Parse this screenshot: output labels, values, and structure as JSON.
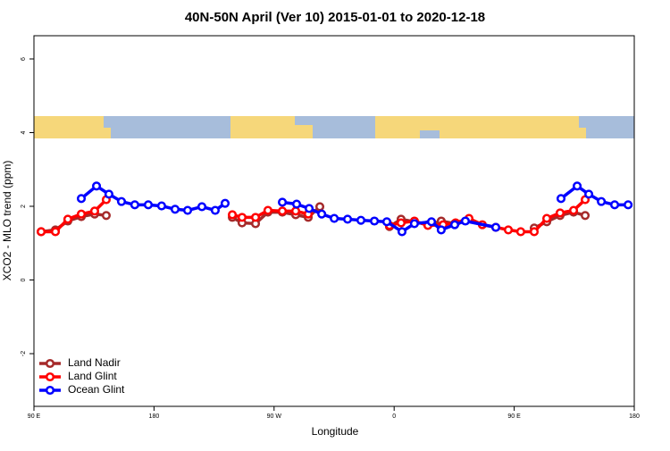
{
  "chart_data": {
    "type": "line",
    "title": "40N-50N April (Ver 10)   2015-01-01 to 2020-12-18",
    "x_label": "Longitude",
    "y_label": "XCO2 - MLO trend (ppm)",
    "xlim": [
      90,
      540
    ],
    "ylim": [
      -3.43,
      6.63
    ],
    "xticks": [
      {
        "value": 90,
        "label": "90 E"
      },
      {
        "value": 180,
        "label": "180"
      },
      {
        "value": 270,
        "label": "90 W"
      },
      {
        "value": 360,
        "label": "0"
      },
      {
        "value": 450,
        "label": "90 E"
      },
      {
        "value": 540,
        "label": "180"
      }
    ],
    "yticks": [
      -2,
      0,
      2,
      4,
      6
    ],
    "legend": "bottom-left",
    "series": [
      {
        "name": "Land Nadir",
        "color": "#a52a2a",
        "x": [
          95.4,
          106.1,
          115.4,
          125.5,
          135.5,
          144.2,
          null,
          238.7,
          246.0,
          256.1,
          265.4,
          276.2,
          286.2,
          295.6,
          304.3,
          null,
          356.5,
          365.2,
          375.2,
          385.3,
          395.3,
          405.4,
          null,
          465.0,
          474.4,
          484.4,
          494.5,
          503.2
        ],
        "values": [
          1.31,
          1.36,
          1.6,
          1.72,
          1.79,
          1.75,
          null,
          1.7,
          1.55,
          1.53,
          1.84,
          1.84,
          1.77,
          1.7,
          1.99,
          null,
          1.45,
          1.65,
          1.58,
          1.5,
          1.6,
          1.53,
          null,
          1.41,
          1.58,
          1.75,
          1.84,
          1.75
        ]
      },
      {
        "name": "Land Glint",
        "color": "#ff0000",
        "x": [
          95.4,
          106.1,
          115.4,
          125.5,
          135.5,
          144.2,
          null,
          238.7,
          246.0,
          256.1,
          265.4,
          276.2,
          286.2,
          295.6,
          null,
          356.5,
          365.2,
          375.2,
          385.3,
          396.7,
          406.1,
          416.1,
          426.1,
          436.2,
          445.6,
          454.9,
          465.0,
          474.4,
          484.4,
          494.5,
          503.2
        ],
        "values": [
          1.31,
          1.31,
          1.65,
          1.79,
          1.87,
          2.18,
          null,
          1.77,
          1.7,
          1.7,
          1.89,
          1.87,
          1.87,
          1.79,
          null,
          1.48,
          1.55,
          1.6,
          1.48,
          1.5,
          1.55,
          1.67,
          1.5,
          1.43,
          1.36,
          1.31,
          1.31,
          1.67,
          1.82,
          1.89,
          2.18
        ]
      },
      {
        "name": "Ocean Glint",
        "color": "#0000ff",
        "x": [
          125.5,
          136.9,
          146.2,
          155.6,
          165.6,
          175.7,
          185.7,
          195.8,
          205.2,
          215.9,
          225.9,
          233.3,
          null,
          276.2,
          286.9,
          296.3,
          305.7,
          315.1,
          325.1,
          335.1,
          345.2,
          354.5,
          365.9,
          375.2,
          388.0,
          395.3,
          405.4,
          413.4,
          436.2,
          null,
          485.1,
          497.2,
          505.9,
          515.3,
          525.3,
          535.4
        ],
        "values": [
          2.21,
          2.55,
          2.33,
          2.13,
          2.04,
          2.04,
          2.01,
          1.92,
          1.89,
          1.99,
          1.89,
          2.08,
          null,
          2.11,
          2.06,
          1.94,
          1.79,
          1.67,
          1.65,
          1.62,
          1.6,
          1.58,
          1.31,
          1.53,
          1.58,
          1.36,
          1.5,
          1.6,
          1.43,
          null,
          2.21,
          2.55,
          2.33,
          2.13,
          2.04,
          2.04
        ]
      }
    ]
  }
}
